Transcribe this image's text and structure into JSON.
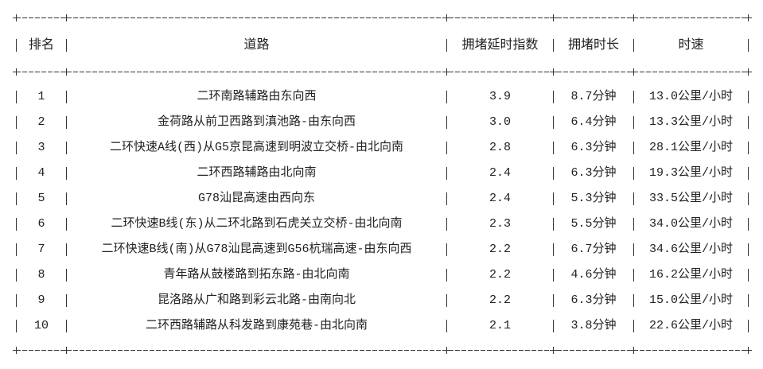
{
  "table": {
    "columns": [
      "排名",
      "道路",
      "拥堵延时指数",
      "拥堵时长",
      "时速"
    ],
    "rows": [
      [
        "1",
        "二环南路辅路由东向西",
        "3.9",
        "8.7分钟",
        "13.0公里/小时"
      ],
      [
        "2",
        "金荷路从前卫西路到滇池路-由东向西",
        "3.0",
        "6.4分钟",
        "13.3公里/小时"
      ],
      [
        "3",
        "二环快速A线(西)从G5京昆高速到明波立交桥-由北向南",
        "2.8",
        "6.3分钟",
        "28.1公里/小时"
      ],
      [
        "4",
        "二环西路辅路由北向南",
        "2.4",
        "6.3分钟",
        "19.3公里/小时"
      ],
      [
        "5",
        "G78汕昆高速由西向东",
        "2.4",
        "5.3分钟",
        "33.5公里/小时"
      ],
      [
        "6",
        "二环快速B线(东)从二环北路到石虎关立交桥-由北向南",
        "2.3",
        "5.5分钟",
        "34.0公里/小时"
      ],
      [
        "7",
        "二环快速B线(南)从G78汕昆高速到G56杭瑞高速-由东向西",
        "2.2",
        "6.7分钟",
        "34.6公里/小时"
      ],
      [
        "8",
        "青年路从鼓楼路到拓东路-由北向南",
        "2.2",
        "4.6分钟",
        "16.2公里/小时"
      ],
      [
        "9",
        "昆洛路从广和路到彩云北路-由南向北",
        "2.2",
        "6.3分钟",
        "15.0公里/小时"
      ],
      [
        "10",
        "二环西路辅路从科发路到康苑巷-由北向南",
        "2.1",
        "3.8分钟",
        "22.6公里/小时"
      ]
    ]
  }
}
